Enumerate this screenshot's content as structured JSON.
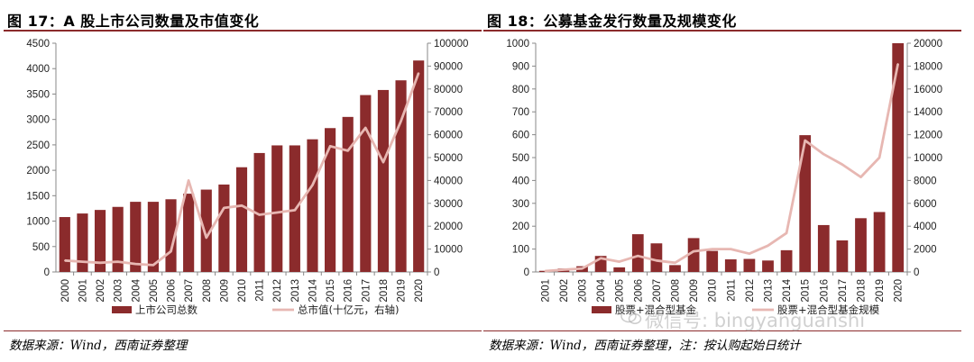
{
  "colors": {
    "bar": "#8b2b2c",
    "line": "#e7b7b2",
    "rule": "#8b2b2c"
  },
  "left": {
    "title": "图 17：A 股上市公司数量及市值变化",
    "source": "数据来源：Wind，西南证券整理"
  },
  "right": {
    "title": "图 18：公募基金发行数量及规模变化",
    "source": "数据来源：Wind，西南证券整理，注：按认购起始日统计"
  },
  "watermark": "微信号: bingyanguanshi",
  "chart_data": [
    {
      "type": "bar+line",
      "categories": [
        "2000",
        "2001",
        "2002",
        "2003",
        "2004",
        "2005",
        "2006",
        "2007",
        "2008",
        "2009",
        "2010",
        "2011",
        "2012",
        "2013",
        "2014",
        "2015",
        "2016",
        "2017",
        "2018",
        "2019",
        "2020"
      ],
      "series": [
        {
          "name": "上市公司总数",
          "type": "bar",
          "axis": "left",
          "values": [
            1080,
            1150,
            1220,
            1280,
            1380,
            1380,
            1430,
            1540,
            1620,
            1720,
            2060,
            2340,
            2490,
            2490,
            2610,
            2830,
            3050,
            3480,
            3580,
            3770,
            4160
          ]
        },
        {
          "name": "总市值(十亿元，右轴)",
          "type": "line",
          "axis": "right",
          "values": [
            5000,
            4500,
            4000,
            4500,
            3500,
            3000,
            9000,
            40000,
            15000,
            28000,
            29000,
            25000,
            26000,
            27000,
            38000,
            55000,
            53000,
            63000,
            48000,
            66000,
            87000
          ]
        }
      ],
      "ylim_left": [
        0,
        4500
      ],
      "yticks_left": [
        0,
        500,
        1000,
        1500,
        2000,
        2500,
        3000,
        3500,
        4000,
        4500
      ],
      "ylim_right": [
        0,
        100000
      ],
      "yticks_right": [
        0,
        10000,
        20000,
        30000,
        40000,
        50000,
        60000,
        70000,
        80000,
        90000,
        100000
      ],
      "grid": false,
      "legend": "bottom"
    },
    {
      "type": "bar+line",
      "categories": [
        "2001",
        "2002",
        "2003",
        "2004",
        "2005",
        "2006",
        "2007",
        "2008",
        "2009",
        "2010",
        "2011",
        "2012",
        "2013",
        "2014",
        "2015",
        "2016",
        "2017",
        "2018",
        "2019",
        "2020"
      ],
      "series": [
        {
          "name": "股票+混合型基金",
          "type": "bar",
          "axis": "left",
          "values": [
            5,
            15,
            25,
            70,
            20,
            165,
            125,
            30,
            148,
            92,
            55,
            57,
            50,
            95,
            598,
            205,
            138,
            235,
            262,
            1000
          ]
        },
        {
          "name": "股票+混合型基金规模",
          "type": "line",
          "axis": "right",
          "values": [
            80,
            200,
            300,
            1200,
            900,
            1400,
            1000,
            800,
            1800,
            2000,
            2000,
            1600,
            2300,
            3400,
            11500,
            10300,
            9400,
            8300,
            10000,
            18200
          ]
        }
      ],
      "ylim_left": [
        0,
        1000
      ],
      "yticks_left": [
        0,
        100,
        200,
        300,
        400,
        500,
        600,
        700,
        800,
        900,
        1000
      ],
      "ylim_right": [
        0,
        20000
      ],
      "yticks_right": [
        0,
        2000,
        4000,
        6000,
        8000,
        10000,
        12000,
        14000,
        16000,
        18000,
        20000
      ],
      "grid": false,
      "legend": "bottom"
    }
  ]
}
